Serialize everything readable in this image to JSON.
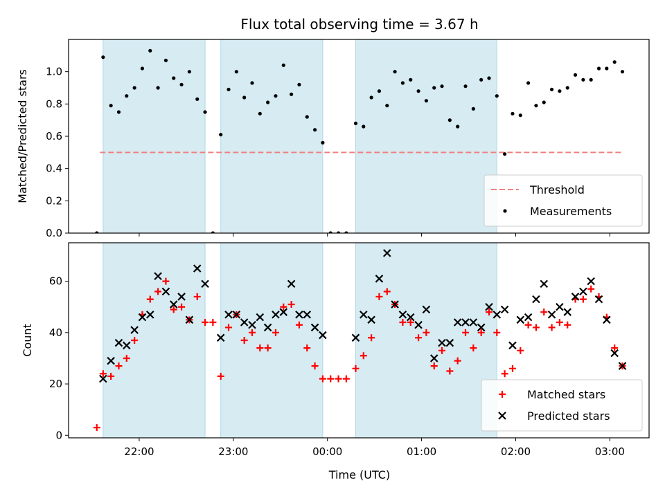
{
  "title": "Flux total observing time = 3.67 h",
  "xlabel": "Time (UTC)",
  "chart_data": [
    {
      "type": "scatter",
      "ylabel": "Matched/Predicted stars",
      "xlim": [
        "21:15",
        "03:25"
      ],
      "ylim": [
        0,
        1.2
      ],
      "yticks": [
        0.0,
        0.2,
        0.4,
        0.6,
        0.8,
        1.0
      ],
      "xticks": [
        "22:00",
        "23:00",
        "00:00",
        "01:00",
        "02:00",
        "03:00"
      ],
      "tick_labels_visible": false,
      "grid": false,
      "legend_position": "lower-right",
      "shaded_intervals": [
        [
          "21:37",
          "22:42"
        ],
        [
          "22:52",
          "23:57"
        ],
        [
          "00:18",
          "01:48"
        ]
      ],
      "threshold": {
        "name": "Threshold",
        "y": 0.5,
        "x_range": [
          "21:35",
          "03:07"
        ],
        "color": "#f08080",
        "style": "dashed"
      },
      "series": [
        {
          "name": "Measurements",
          "color": "#000000",
          "marker": "dot",
          "points": [
            [
              "21:33",
              0.0
            ],
            [
              "21:37",
              1.09
            ],
            [
              "21:42",
              0.79
            ],
            [
              "21:47",
              0.75
            ],
            [
              "21:52",
              0.85
            ],
            [
              "21:57",
              0.9
            ],
            [
              "22:02",
              1.02
            ],
            [
              "22:07",
              1.13
            ],
            [
              "22:12",
              0.9
            ],
            [
              "22:17",
              1.07
            ],
            [
              "22:22",
              0.96
            ],
            [
              "22:27",
              0.92
            ],
            [
              "22:32",
              1.0
            ],
            [
              "22:37",
              0.83
            ],
            [
              "22:42",
              0.75
            ],
            [
              "22:47",
              0.0
            ],
            [
              "22:52",
              0.61
            ],
            [
              "22:57",
              0.89
            ],
            [
              "23:02",
              1.0
            ],
            [
              "23:07",
              0.84
            ],
            [
              "23:12",
              0.93
            ],
            [
              "23:17",
              0.74
            ],
            [
              "23:22",
              0.81
            ],
            [
              "23:27",
              0.85
            ],
            [
              "23:32",
              1.04
            ],
            [
              "23:37",
              0.86
            ],
            [
              "23:42",
              0.92
            ],
            [
              "23:47",
              0.72
            ],
            [
              "23:52",
              0.64
            ],
            [
              "23:57",
              0.56
            ],
            [
              "00:02",
              0.0
            ],
            [
              "00:07",
              0.0
            ],
            [
              "00:12",
              0.0
            ],
            [
              "00:18",
              0.68
            ],
            [
              "00:23",
              0.66
            ],
            [
              "00:28",
              0.84
            ],
            [
              "00:33",
              0.88
            ],
            [
              "00:38",
              0.79
            ],
            [
              "00:43",
              1.0
            ],
            [
              "00:48",
              0.93
            ],
            [
              "00:53",
              0.95
            ],
            [
              "00:58",
              0.88
            ],
            [
              "01:03",
              0.82
            ],
            [
              "01:08",
              0.9
            ],
            [
              "01:13",
              0.91
            ],
            [
              "01:18",
              0.7
            ],
            [
              "01:23",
              0.66
            ],
            [
              "01:28",
              0.91
            ],
            [
              "01:33",
              0.77
            ],
            [
              "01:38",
              0.95
            ],
            [
              "01:43",
              0.96
            ],
            [
              "01:48",
              0.85
            ],
            [
              "01:53",
              0.49
            ],
            [
              "01:58",
              0.74
            ],
            [
              "02:03",
              0.73
            ],
            [
              "02:08",
              0.93
            ],
            [
              "02:13",
              0.79
            ],
            [
              "02:18",
              0.81
            ],
            [
              "02:23",
              0.89
            ],
            [
              "02:28",
              0.88
            ],
            [
              "02:33",
              0.9
            ],
            [
              "02:38",
              0.98
            ],
            [
              "02:43",
              0.95
            ],
            [
              "02:48",
              0.95
            ],
            [
              "02:53",
              1.02
            ],
            [
              "02:58",
              1.02
            ],
            [
              "03:03",
              1.06
            ],
            [
              "03:08",
              1.0
            ]
          ]
        }
      ]
    },
    {
      "type": "scatter",
      "ylabel": "Count",
      "xlim": [
        "21:15",
        "03:25"
      ],
      "ylim": [
        -1,
        75
      ],
      "yticks": [
        0,
        20,
        40,
        60
      ],
      "xticks": [
        "22:00",
        "23:00",
        "00:00",
        "01:00",
        "02:00",
        "03:00"
      ],
      "grid": false,
      "legend_position": "lower-right",
      "shaded_intervals": [
        [
          "21:37",
          "22:42"
        ],
        [
          "22:52",
          "23:57"
        ],
        [
          "00:18",
          "01:48"
        ]
      ],
      "series": [
        {
          "name": "Matched stars",
          "color": "#ff0000",
          "marker": "plus",
          "points": [
            [
              "21:33",
              3
            ],
            [
              "21:37",
              24
            ],
            [
              "21:42",
              23
            ],
            [
              "21:47",
              27
            ],
            [
              "21:52",
              30
            ],
            [
              "21:57",
              37
            ],
            [
              "22:02",
              47
            ],
            [
              "22:07",
              53
            ],
            [
              "22:12",
              56
            ],
            [
              "22:17",
              60
            ],
            [
              "22:22",
              49
            ],
            [
              "22:27",
              50
            ],
            [
              "22:32",
              45
            ],
            [
              "22:37",
              54
            ],
            [
              "22:42",
              44
            ],
            [
              "22:47",
              44
            ],
            [
              "22:52",
              23
            ],
            [
              "22:57",
              42
            ],
            [
              "23:02",
              47
            ],
            [
              "23:07",
              37
            ],
            [
              "23:12",
              40
            ],
            [
              "23:17",
              34
            ],
            [
              "23:22",
              34
            ],
            [
              "23:27",
              40
            ],
            [
              "23:32",
              50
            ],
            [
              "23:37",
              51
            ],
            [
              "23:42",
              43
            ],
            [
              "23:47",
              34
            ],
            [
              "23:52",
              27
            ],
            [
              "23:57",
              22
            ],
            [
              "00:02",
              22
            ],
            [
              "00:07",
              22
            ],
            [
              "00:12",
              22
            ],
            [
              "00:18",
              26
            ],
            [
              "00:23",
              31
            ],
            [
              "00:28",
              38
            ],
            [
              "00:33",
              54
            ],
            [
              "00:38",
              56
            ],
            [
              "00:43",
              51
            ],
            [
              "00:48",
              44
            ],
            [
              "00:53",
              44
            ],
            [
              "00:58",
              38
            ],
            [
              "01:03",
              40
            ],
            [
              "01:08",
              27
            ],
            [
              "01:13",
              33
            ],
            [
              "01:18",
              25
            ],
            [
              "01:23",
              29
            ],
            [
              "01:28",
              40
            ],
            [
              "01:33",
              34
            ],
            [
              "01:38",
              40
            ],
            [
              "01:43",
              48
            ],
            [
              "01:48",
              40
            ],
            [
              "01:53",
              24
            ],
            [
              "01:58",
              26
            ],
            [
              "02:03",
              33
            ],
            [
              "02:08",
              43
            ],
            [
              "02:13",
              42
            ],
            [
              "02:18",
              48
            ],
            [
              "02:23",
              42
            ],
            [
              "02:28",
              44
            ],
            [
              "02:33",
              43
            ],
            [
              "02:38",
              53
            ],
            [
              "02:43",
              53
            ],
            [
              "02:48",
              57
            ],
            [
              "02:53",
              54
            ],
            [
              "02:58",
              46
            ],
            [
              "03:03",
              34
            ],
            [
              "03:08",
              27
            ]
          ]
        },
        {
          "name": "Predicted stars",
          "color": "#000000",
          "marker": "x",
          "points": [
            [
              "21:37",
              22
            ],
            [
              "21:42",
              29
            ],
            [
              "21:47",
              36
            ],
            [
              "21:52",
              35
            ],
            [
              "21:57",
              41
            ],
            [
              "22:02",
              46
            ],
            [
              "22:07",
              47
            ],
            [
              "22:12",
              62
            ],
            [
              "22:17",
              56
            ],
            [
              "22:22",
              51
            ],
            [
              "22:27",
              54
            ],
            [
              "22:32",
              45
            ],
            [
              "22:37",
              65
            ],
            [
              "22:42",
              59
            ],
            [
              "22:52",
              38
            ],
            [
              "22:57",
              47
            ],
            [
              "23:02",
              47
            ],
            [
              "23:07",
              44
            ],
            [
              "23:12",
              43
            ],
            [
              "23:17",
              46
            ],
            [
              "23:22",
              42
            ],
            [
              "23:27",
              47
            ],
            [
              "23:32",
              48
            ],
            [
              "23:37",
              59
            ],
            [
              "23:42",
              47
            ],
            [
              "23:47",
              47
            ],
            [
              "23:52",
              42
            ],
            [
              "23:57",
              39
            ],
            [
              "00:18",
              38
            ],
            [
              "00:23",
              47
            ],
            [
              "00:28",
              45
            ],
            [
              "00:33",
              61
            ],
            [
              "00:38",
              71
            ],
            [
              "00:43",
              51
            ],
            [
              "00:48",
              47
            ],
            [
              "00:53",
              46
            ],
            [
              "00:58",
              43
            ],
            [
              "01:03",
              49
            ],
            [
              "01:08",
              30
            ],
            [
              "01:13",
              36
            ],
            [
              "01:18",
              36
            ],
            [
              "01:23",
              44
            ],
            [
              "01:28",
              44
            ],
            [
              "01:33",
              44
            ],
            [
              "01:38",
              42
            ],
            [
              "01:43",
              50
            ],
            [
              "01:48",
              47
            ],
            [
              "01:53",
              49
            ],
            [
              "01:58",
              35
            ],
            [
              "02:03",
              45
            ],
            [
              "02:08",
              46
            ],
            [
              "02:13",
              53
            ],
            [
              "02:18",
              59
            ],
            [
              "02:23",
              47
            ],
            [
              "02:28",
              50
            ],
            [
              "02:33",
              48
            ],
            [
              "02:38",
              54
            ],
            [
              "02:43",
              56
            ],
            [
              "02:48",
              60
            ],
            [
              "02:53",
              53
            ],
            [
              "02:58",
              45
            ],
            [
              "03:03",
              32
            ],
            [
              "03:08",
              27
            ]
          ]
        }
      ]
    }
  ]
}
